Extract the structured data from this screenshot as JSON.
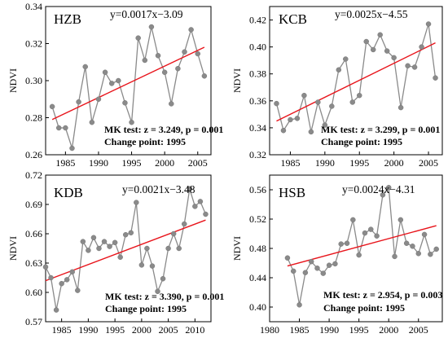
{
  "chart_data": [
    {
      "type": "line",
      "code": "HZB",
      "equation": "y=0.0017x−3.09",
      "ylabel": "NDVI",
      "xlim": [
        1982,
        2007
      ],
      "ylim": [
        0.26,
        0.34
      ],
      "xticks": [
        1985,
        1990,
        1995,
        2000,
        2005
      ],
      "yticks": [
        0.26,
        0.28,
        0.3,
        0.32,
        0.34
      ],
      "yticklabels": [
        "0.26",
        "0.28",
        "0.30",
        "0.32",
        "0.34"
      ],
      "x": [
        1983,
        1984,
        1985,
        1986,
        1987,
        1988,
        1989,
        1990,
        1991,
        1992,
        1993,
        1994,
        1995,
        1996,
        1997,
        1998,
        1999,
        2000,
        2001,
        2002,
        2003,
        2004,
        2005,
        2006
      ],
      "values": [
        0.286,
        0.2745,
        0.2745,
        0.2635,
        0.2885,
        0.3075,
        0.2775,
        0.29,
        0.3045,
        0.2985,
        0.3,
        0.288,
        0.2775,
        0.323,
        0.311,
        0.329,
        0.3135,
        0.3045,
        0.2875,
        0.3065,
        0.3155,
        0.3275,
        0.3145,
        0.3025
      ],
      "trend": [
        0.279,
        0.318
      ],
      "mk_test": "MK  test: z = 3.249,  p = 0.001",
      "change_point": "Change point: 1995",
      "colors": {
        "series": "#8a8a8a",
        "trend": "#e8141b"
      }
    },
    {
      "type": "line",
      "code": "KCB",
      "equation": "y=0.0025x−4.55",
      "ylabel": "NDVI",
      "xlim": [
        1982,
        2007
      ],
      "ylim": [
        0.32,
        0.43
      ],
      "xticks": [
        1985,
        1990,
        1995,
        2000,
        2005
      ],
      "yticks": [
        0.32,
        0.34,
        0.36,
        0.38,
        0.4,
        0.42
      ],
      "yticklabels": [
        "0.32",
        "0.34",
        "0.36",
        "0.38",
        "0.40",
        "0.42"
      ],
      "x": [
        1983,
        1984,
        1985,
        1986,
        1987,
        1988,
        1989,
        1990,
        1991,
        1992,
        1993,
        1994,
        1995,
        1996,
        1997,
        1998,
        1999,
        2000,
        2001,
        2002,
        2003,
        2004,
        2005,
        2006
      ],
      "values": [
        0.358,
        0.338,
        0.346,
        0.347,
        0.364,
        0.337,
        0.359,
        0.342,
        0.356,
        0.383,
        0.391,
        0.359,
        0.364,
        0.404,
        0.398,
        0.409,
        0.397,
        0.392,
        0.355,
        0.386,
        0.385,
        0.4,
        0.417,
        0.377
      ],
      "trend": [
        0.345,
        0.403
      ],
      "mk_test": "MK  test: z = 3.299,  p = 0.001",
      "change_point": "Change point: 1995",
      "colors": {
        "series": "#8a8a8a",
        "trend": "#e8141b"
      }
    },
    {
      "type": "line",
      "code": "KDB",
      "equation": "y=0.0021x−3.48",
      "ylabel": "NDVI",
      "xlim": [
        1982,
        2013
      ],
      "ylim": [
        0.57,
        0.72
      ],
      "xticks": [
        1985,
        1990,
        1995,
        2000,
        2005,
        2010
      ],
      "yticks": [
        0.57,
        0.6,
        0.63,
        0.66,
        0.69,
        0.72
      ],
      "yticklabels": [
        "0.57",
        "0.60",
        "0.63",
        "0.66",
        "0.69",
        "0.72"
      ],
      "x": [
        1982,
        1983,
        1984,
        1985,
        1986,
        1987,
        1988,
        1989,
        1990,
        1991,
        1992,
        1993,
        1994,
        1995,
        1996,
        1997,
        1998,
        1999,
        2000,
        2001,
        2002,
        2003,
        2004,
        2005,
        2006,
        2007,
        2008,
        2009,
        2010,
        2011,
        2012
      ],
      "values": [
        0.626,
        0.615,
        0.582,
        0.609,
        0.613,
        0.621,
        0.602,
        0.652,
        0.643,
        0.656,
        0.645,
        0.652,
        0.647,
        0.651,
        0.636,
        0.659,
        0.661,
        0.692,
        0.628,
        0.645,
        0.627,
        0.601,
        0.614,
        0.645,
        0.66,
        0.645,
        0.67,
        0.706,
        0.688,
        0.693,
        0.68
      ],
      "trend": [
        0.612,
        0.674
      ],
      "mk_test": "MK  test: z = 3.390,  p = 0.001",
      "change_point": "Change point: 1995",
      "colors": {
        "series": "#8a8a8a",
        "trend": "#e8141b"
      }
    },
    {
      "type": "line",
      "code": "HSB",
      "equation": "y=0.0024x−4.31",
      "ylabel": "NDVI",
      "xlim": [
        1980,
        2009
      ],
      "ylim": [
        0.38,
        0.58
      ],
      "xticks": [
        1980,
        1985,
        1990,
        1995,
        2000,
        2005
      ],
      "yticks": [
        0.4,
        0.44,
        0.48,
        0.52,
        0.56
      ],
      "yticklabels": [
        "0.40",
        "0.44",
        "0.48",
        "0.52",
        "0.56"
      ],
      "x": [
        1983,
        1984,
        1985,
        1986,
        1987,
        1988,
        1989,
        1990,
        1991,
        1992,
        1993,
        1994,
        1995,
        1996,
        1997,
        1998,
        1999,
        2000,
        2001,
        2002,
        2003,
        2004,
        2005,
        2006,
        2007,
        2008
      ],
      "values": [
        0.467,
        0.449,
        0.403,
        0.447,
        0.462,
        0.453,
        0.446,
        0.457,
        0.459,
        0.486,
        0.487,
        0.519,
        0.471,
        0.501,
        0.506,
        0.497,
        0.553,
        0.563,
        0.469,
        0.519,
        0.487,
        0.483,
        0.473,
        0.499,
        0.472,
        0.479
      ],
      "trend": [
        0.456,
        0.511
      ],
      "mk_test": "MK  test: z = 2.954,  p = 0.003",
      "change_point": "Change point: 1995",
      "colors": {
        "series": "#8a8a8a",
        "trend": "#e8141b"
      }
    }
  ]
}
